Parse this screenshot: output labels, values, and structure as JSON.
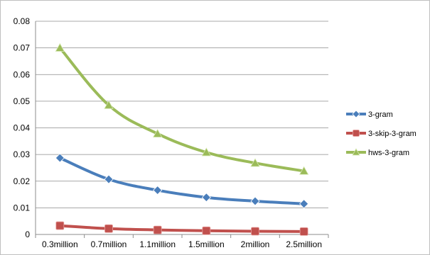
{
  "chart_data": {
    "type": "line",
    "title": "",
    "xlabel": "",
    "ylabel": "",
    "categories": [
      "0.3million",
      "0.7million",
      "1.1million",
      "1.5million",
      "2million",
      "2.5million"
    ],
    "ylim": [
      0,
      0.08
    ],
    "yticks": [
      "0",
      "0.01",
      "0.02",
      "0.03",
      "0.04",
      "0.05",
      "0.06",
      "0.07",
      "0.08"
    ],
    "grid": "horizontal",
    "legend_position": "right",
    "series": [
      {
        "name": "3-gram",
        "values": [
          0.0287,
          0.0207,
          0.0166,
          0.0139,
          0.0125,
          0.0115
        ],
        "color": "#4a7ebb",
        "marker": "diamond"
      },
      {
        "name": "3-skip-3-gram",
        "values": [
          0.0033,
          0.0022,
          0.0017,
          0.0014,
          0.0012,
          0.0011
        ],
        "color": "#c0504d",
        "marker": "square"
      },
      {
        "name": "hws-3-gram",
        "values": [
          0.07,
          0.0485,
          0.0378,
          0.0308,
          0.0268,
          0.0238
        ],
        "color": "#9bbb59",
        "marker": "triangle"
      }
    ]
  }
}
